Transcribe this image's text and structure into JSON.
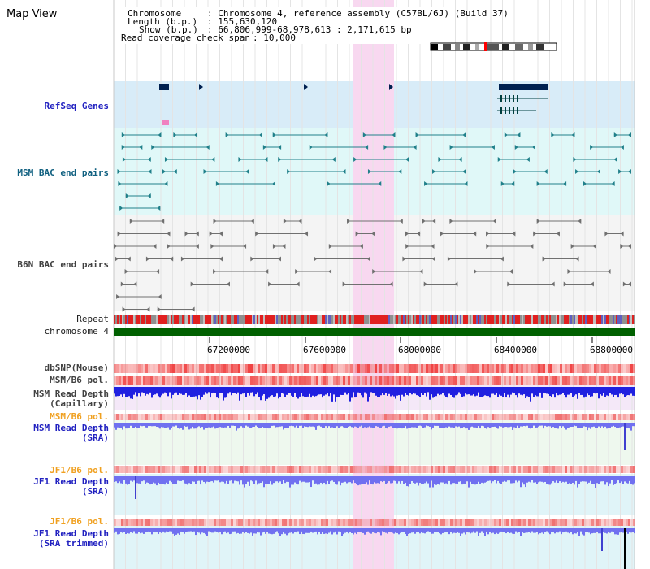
{
  "window": {
    "title": "Map View"
  },
  "header": {
    "chromosome_label": "Chromosome",
    "chromosome_value": ": Chromosome 4, reference assembly (C57BL/6J) (Build 37)",
    "length_label": "Length (b.p.)",
    "length_value": ": 155,630,120",
    "show_label": "Show (b.p.)",
    "show_value": ": 66,806,999-68,978,613 : 2,171,615 bp",
    "coverage_label": "Read coverage check span",
    "coverage_value": ": 10,000"
  },
  "tracks": {
    "refseq": "RefSeq Genes",
    "msm_bac": "MSM BAC end pairs",
    "b6n_bac": "B6N BAC end pairs",
    "repeat": "Repeat",
    "chromosome": "chromosome 4",
    "dbsnp": "dbSNP(Mouse)",
    "msm_b6_pol_1": "MSM/B6 pol.",
    "msm_depth_cap_1": "MSM Read Depth",
    "msm_depth_cap_2": "(Capillary)",
    "msm_b6_pol_2": "MSM/B6 pol.",
    "msm_depth_sra_1": "MSM Read Depth",
    "msm_depth_sra_2": "(SRA)",
    "jf1_b6_pol_1": "JF1/B6 pol.",
    "jf1_depth_sra_1": "JF1 Read Depth",
    "jf1_depth_sra_2": "(SRA)",
    "jf1_b6_pol_2": "JF1/B6 pol.",
    "jf1_depth_trim_1": "JF1 Read Depth",
    "jf1_depth_trim_2": "(SRA trimmed)"
  },
  "axis": {
    "ticks": [
      "67200000",
      "67600000",
      "68000000",
      "68400000",
      "68800000"
    ]
  },
  "colors": {
    "highlight": "#f8d8f0",
    "refseq_bg": "#d8ecf8",
    "msm_bg": "#e0f8f8",
    "gene": "#002050",
    "chromosome": "#006000",
    "snp": "#f04040",
    "depth_blue": "#2020e0",
    "depth_light": "#7070f0"
  }
}
